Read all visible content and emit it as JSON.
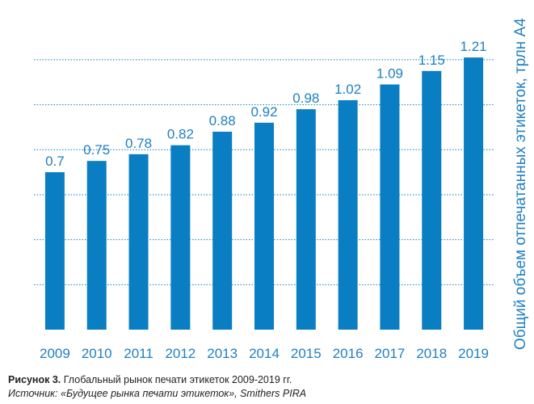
{
  "chart_data": {
    "type": "bar",
    "categories": [
      "2009",
      "2010",
      "2011",
      "2012",
      "2013",
      "2014",
      "2015",
      "2016",
      "2017",
      "2018",
      "2019"
    ],
    "values": [
      0.7,
      0.75,
      0.78,
      0.82,
      0.88,
      0.92,
      0.98,
      1.02,
      1.09,
      1.15,
      1.21
    ],
    "value_labels": [
      "0.7",
      "0.75",
      "0.78",
      "0.82",
      "0.88",
      "0.92",
      "0.98",
      "1.02",
      "1.09",
      "1.15",
      "1.21"
    ],
    "ylabel": "Общий объем отпечатанных этикеток, трлн А4",
    "xlabel": "",
    "ylim": [
      0,
      1.25
    ],
    "grid": true,
    "grid_style": "dotted",
    "bar_color": "#0a7ec2",
    "label_color": "#1f7fc0"
  },
  "caption": {
    "label": "Рисунок 3.",
    "text": " Глобальный рынок печати этикеток 2009-2019 гг.",
    "source": "Источник: «Будущее рынка печати этикеток», Smithers PIRA"
  }
}
